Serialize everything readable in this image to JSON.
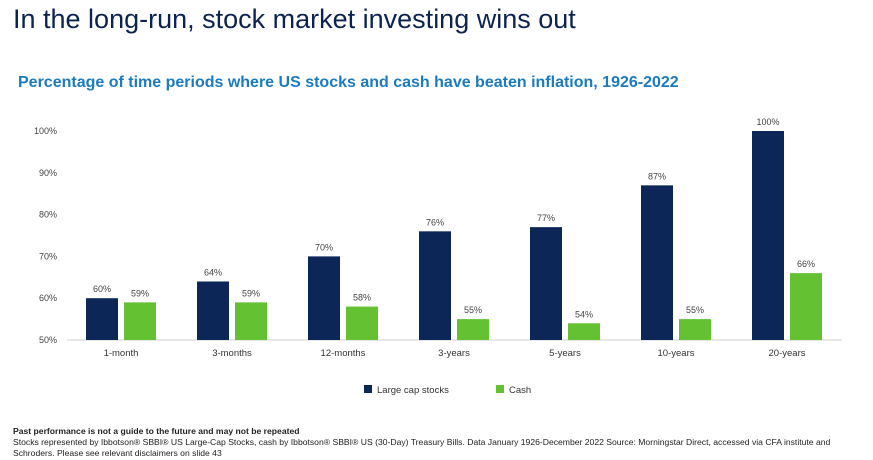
{
  "header": {
    "title": "In the long-run, stock market investing wins out"
  },
  "chart_data": {
    "type": "bar",
    "title": "Percentage of time periods where US stocks and cash have beaten inflation, 1926-2022",
    "categories": [
      "1-month",
      "3-months",
      "12-months",
      "3-years",
      "5-years",
      "10-years",
      "20-years"
    ],
    "series": [
      {
        "name": "Large cap stocks",
        "color": "#0b2657",
        "values": [
          60,
          64,
          70,
          76,
          77,
          87,
          100
        ]
      },
      {
        "name": "Cash",
        "color": "#63c132",
        "values": [
          59,
          59,
          58,
          55,
          54,
          55,
          66
        ]
      }
    ],
    "ylim": [
      50,
      100
    ],
    "yticks": [
      50,
      60,
      70,
      80,
      90,
      100
    ],
    "ytick_labels": [
      "50%",
      "60%",
      "70%",
      "80%",
      "90%",
      "100%"
    ],
    "legend": "bottom-center",
    "xlabel": "",
    "ylabel": ""
  },
  "footer": {
    "disclaimer": "Past performance is not a guide to the future and may not be repeated",
    "source": "Stocks represented by Ibbotson® SBBI® US Large-Cap Stocks, cash by Ibbotson® SBBI® US (30-Day) Treasury Bills. Data January 1926-December 2022 Source: Morningstar Direct, accessed via CFA institute and Schroders. Please see relevant disclaimers on slide 43"
  }
}
